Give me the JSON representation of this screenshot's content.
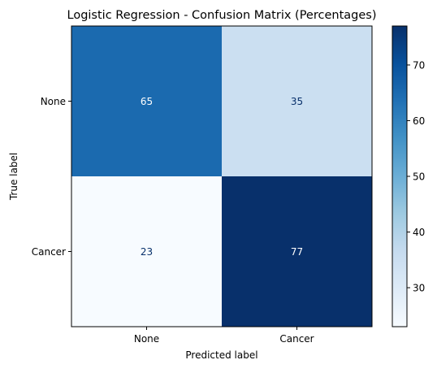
{
  "chart_data": {
    "type": "heatmap",
    "title": "Logistic Regression - Confusion Matrix (Percentages)",
    "xlabel": "Predicted label",
    "ylabel": "True label",
    "x_categories": [
      "None",
      "Cancer"
    ],
    "y_categories": [
      "None",
      "Cancer"
    ],
    "values": [
      [
        65,
        35
      ],
      [
        23,
        77
      ]
    ],
    "colormap": "Blues",
    "colorbar": {
      "min": 23,
      "max": 77,
      "ticks": [
        30,
        40,
        50,
        60,
        70
      ]
    },
    "grid": false
  }
}
